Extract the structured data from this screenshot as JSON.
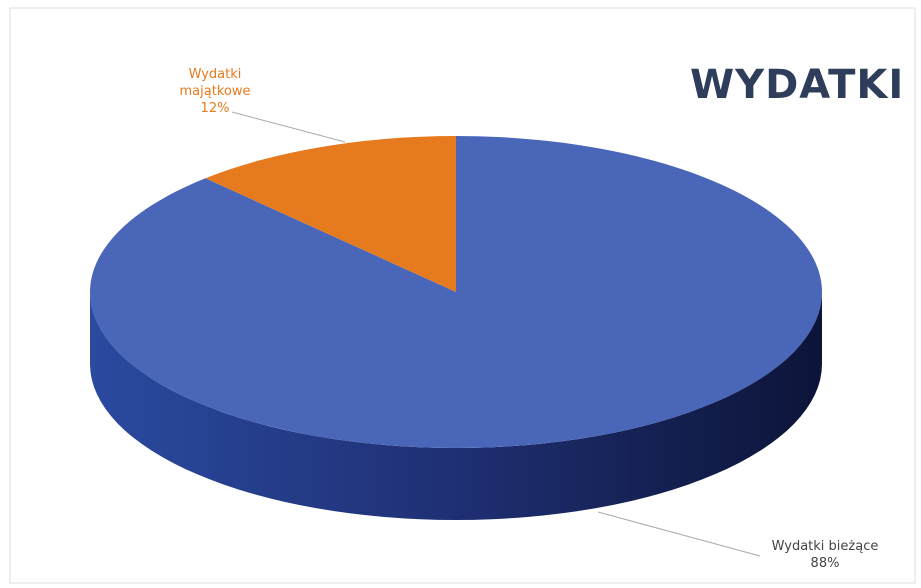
{
  "chart_data": {
    "type": "pie3d",
    "title": "WYDATKI",
    "categories": [
      "Wydatki bieżące",
      "Wydatki majątkowe"
    ],
    "values": [
      88,
      12
    ],
    "value_labels": [
      "88%",
      "12%"
    ],
    "colors": [
      "#4a66b9",
      "#e67a1f"
    ]
  }
}
